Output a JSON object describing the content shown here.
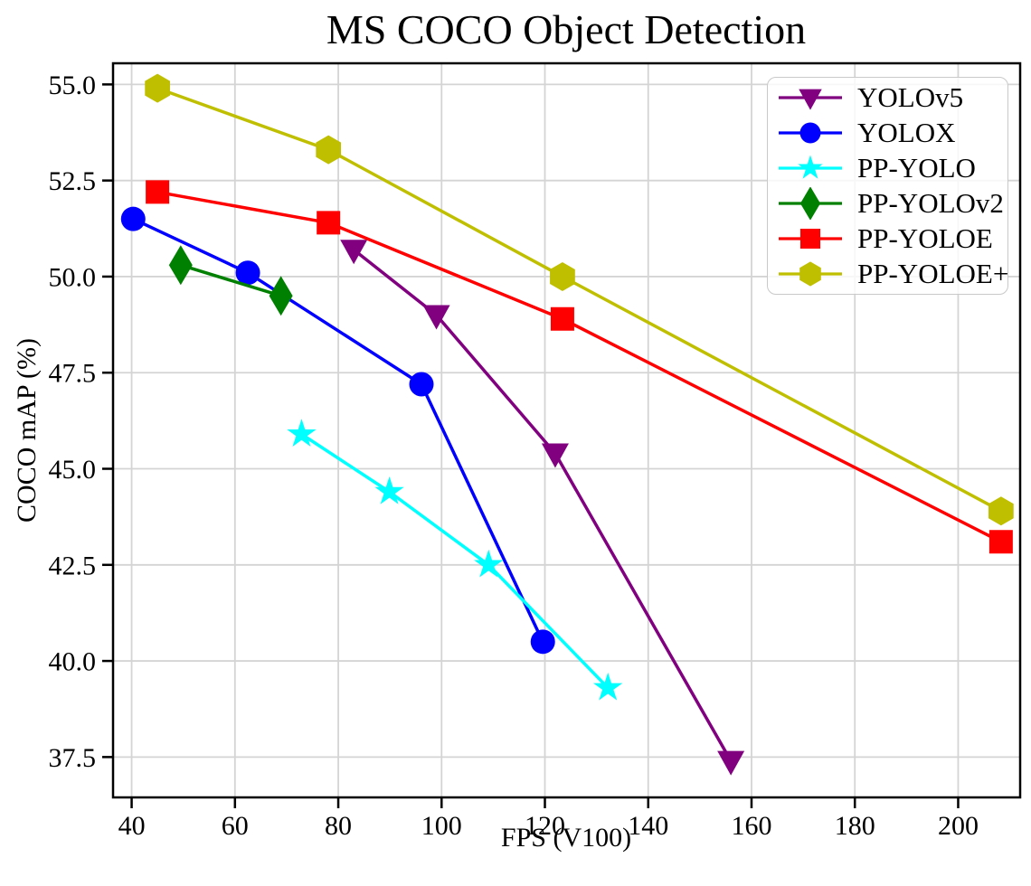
{
  "chart_data": {
    "type": "line",
    "title": "MS COCO Object Detection",
    "xlabel": "FPS (V100)",
    "ylabel": "COCO mAP (%)",
    "xlim": [
      36.4,
      212.0
    ],
    "ylim": [
      36.45,
      55.55
    ],
    "x_ticks": [
      40,
      60,
      80,
      100,
      120,
      140,
      160,
      180,
      200
    ],
    "y_ticks": [
      37.5,
      40.0,
      42.5,
      45.0,
      47.5,
      50.0,
      52.5,
      55.0
    ],
    "grid": true,
    "grid_color": "#d4d4d4",
    "legend_position": "upper right",
    "series": [
      {
        "name": "YOLOv5",
        "color": "#800080",
        "marker": "triangle-down",
        "points": [
          [
            83.0,
            50.7
          ],
          [
            99.0,
            49.0
          ],
          [
            122.0,
            45.4
          ],
          [
            156.0,
            37.4
          ]
        ]
      },
      {
        "name": "YOLOX",
        "color": "#0000ff",
        "marker": "circle",
        "points": [
          [
            40.3,
            51.5
          ],
          [
            62.5,
            50.1
          ],
          [
            96.1,
            47.2
          ],
          [
            119.6,
            40.5
          ]
        ]
      },
      {
        "name": "PP-YOLO",
        "color": "#00ffff",
        "marker": "star",
        "points": [
          [
            72.9,
            45.9
          ],
          [
            89.9,
            44.4
          ],
          [
            109.1,
            42.5
          ],
          [
            132.2,
            39.3
          ]
        ]
      },
      {
        "name": "PP-YOLOv2",
        "color": "#008000",
        "marker": "thin-diamond",
        "points": [
          [
            49.5,
            50.3
          ],
          [
            68.9,
            49.5
          ]
        ]
      },
      {
        "name": "PP-YOLOE",
        "color": "#ff0000",
        "marker": "square",
        "points": [
          [
            45.0,
            52.2
          ],
          [
            78.1,
            51.4
          ],
          [
            123.4,
            48.9
          ],
          [
            208.3,
            43.1
          ]
        ]
      },
      {
        "name": "PP-YOLOE+",
        "color": "#bfbf00",
        "marker": "hexagon",
        "points": [
          [
            45.0,
            54.9
          ],
          [
            78.1,
            53.3
          ],
          [
            123.4,
            50.0
          ],
          [
            208.3,
            43.9
          ]
        ]
      }
    ]
  }
}
